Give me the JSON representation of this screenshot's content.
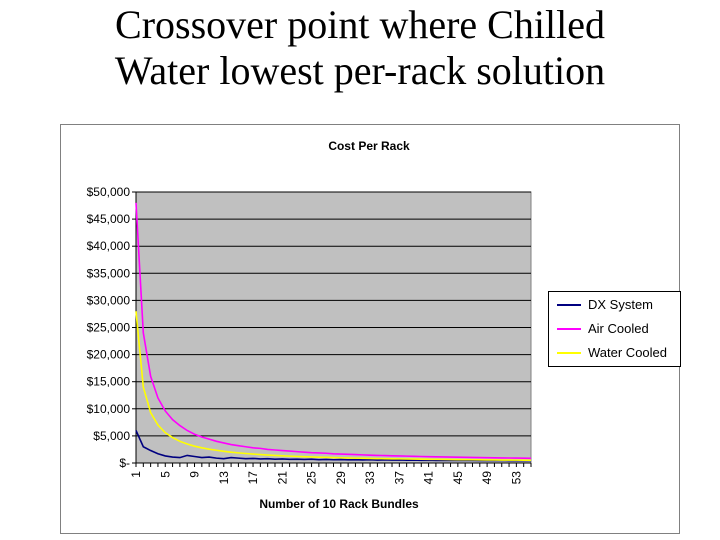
{
  "slide": {
    "title_line1": "Crossover point where Chilled",
    "title_line2": "Water lowest per-rack solution"
  },
  "chart_data": {
    "type": "line",
    "title": "Cost Per Rack",
    "xlabel": "Number of 10 Rack Bundles",
    "ylabel": "",
    "x": [
      1,
      2,
      3,
      4,
      5,
      6,
      7,
      8,
      9,
      10,
      11,
      12,
      13,
      14,
      15,
      16,
      17,
      18,
      19,
      20,
      21,
      22,
      23,
      24,
      25,
      26,
      27,
      28,
      29,
      30,
      31,
      32,
      33,
      34,
      35,
      36,
      37,
      38,
      39,
      40,
      41,
      42,
      43,
      44,
      45,
      46,
      47,
      48,
      49,
      50,
      51,
      52,
      53,
      54,
      55
    ],
    "xticks": [
      "1",
      "5",
      "9",
      "13",
      "17",
      "21",
      "25",
      "29",
      "33",
      "37",
      "41",
      "45",
      "49",
      "53"
    ],
    "ylim": [
      0,
      50000
    ],
    "yticks": [
      "$-",
      "$5,000",
      "$10,000",
      "$15,000",
      "$20,000",
      "$25,000",
      "$30,000",
      "$35,000",
      "$40,000",
      "$45,000",
      "$50,000"
    ],
    "grid": true,
    "legend_position": "right",
    "series": [
      {
        "name": "DX System",
        "color": "#000080",
        "values": [
          6000,
          3000,
          2300,
          1700,
          1300,
          1100,
          1000,
          1400,
          1200,
          1000,
          1100,
          900,
          800,
          1000,
          900,
          800,
          850,
          750,
          800,
          700,
          750,
          680,
          700,
          650,
          700,
          620,
          650,
          600,
          640,
          580,
          620,
          560,
          600,
          550,
          580,
          540,
          560,
          520,
          550,
          500,
          520,
          480,
          500,
          470,
          490,
          460,
          480,
          450,
          470,
          440,
          460,
          430,
          450,
          420,
          440
        ]
      },
      {
        "name": "Air Cooled",
        "color": "#ff00ff",
        "values": [
          48000,
          24000,
          16000,
          12000,
          9600,
          8000,
          6900,
          6000,
          5300,
          4800,
          4400,
          4000,
          3700,
          3400,
          3200,
          3000,
          2800,
          2700,
          2500,
          2400,
          2300,
          2200,
          2100,
          2000,
          1900,
          1850,
          1800,
          1700,
          1650,
          1600,
          1550,
          1500,
          1450,
          1400,
          1370,
          1330,
          1300,
          1270,
          1230,
          1200,
          1170,
          1150,
          1120,
          1100,
          1070,
          1050,
          1020,
          1000,
          980,
          960,
          940,
          920,
          910,
          890,
          870
        ]
      },
      {
        "name": "Water Cooled",
        "color": "#ffff00",
        "values": [
          28000,
          14000,
          9300,
          7000,
          5600,
          4700,
          4000,
          3500,
          3100,
          2800,
          2550,
          2350,
          2150,
          2000,
          1870,
          1750,
          1650,
          1560,
          1470,
          1400,
          1330,
          1270,
          1220,
          1170,
          1120,
          1080,
          1040,
          1000,
          970,
          930,
          900,
          880,
          850,
          820,
          800,
          780,
          760,
          740,
          720,
          700,
          680,
          670,
          650,
          640,
          620,
          610,
          600,
          580,
          570,
          560,
          550,
          540,
          530,
          520,
          510
        ]
      }
    ]
  }
}
